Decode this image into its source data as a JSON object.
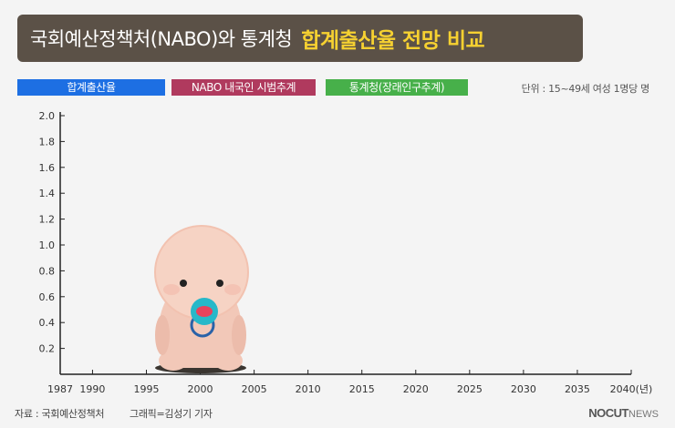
{
  "header": {
    "title_main": "국회예산정책처(NABO)와 통계청",
    "title_highlight": "합계출산율 전망 비교"
  },
  "legend": [
    {
      "label": "합계출산율",
      "color": "#1d6fe3"
    },
    {
      "label": "NABO 내국인 시범추계",
      "color": "#b03a5e"
    },
    {
      "label": "통계청(장래인구추계)",
      "color": "#47b04a"
    }
  ],
  "unit_note": "단위 : 15~49세 여성 1명당 명",
  "footer": {
    "source": "자료 : 국회예산정책처",
    "credit": "그래픽=김성기 기자",
    "brand_strong": "NOCUT",
    "brand_light": "NEWS"
  },
  "chart_data": {
    "type": "line",
    "x_ticks": [
      "1987",
      "1990",
      "1995",
      "2000",
      "2005",
      "2010",
      "2015",
      "2020",
      "2025",
      "2030",
      "2035",
      "2040(년)"
    ],
    "y_ticks": [
      "0.2",
      "0.4",
      "0.6",
      "0.8",
      "1.0",
      "1.2",
      "1.4",
      "1.6",
      "1.8",
      "2.0"
    ],
    "xlim": [
      1987,
      2040
    ],
    "ylim": [
      0,
      2.0
    ],
    "series": [],
    "illustration": "baby-with-pacifier"
  }
}
